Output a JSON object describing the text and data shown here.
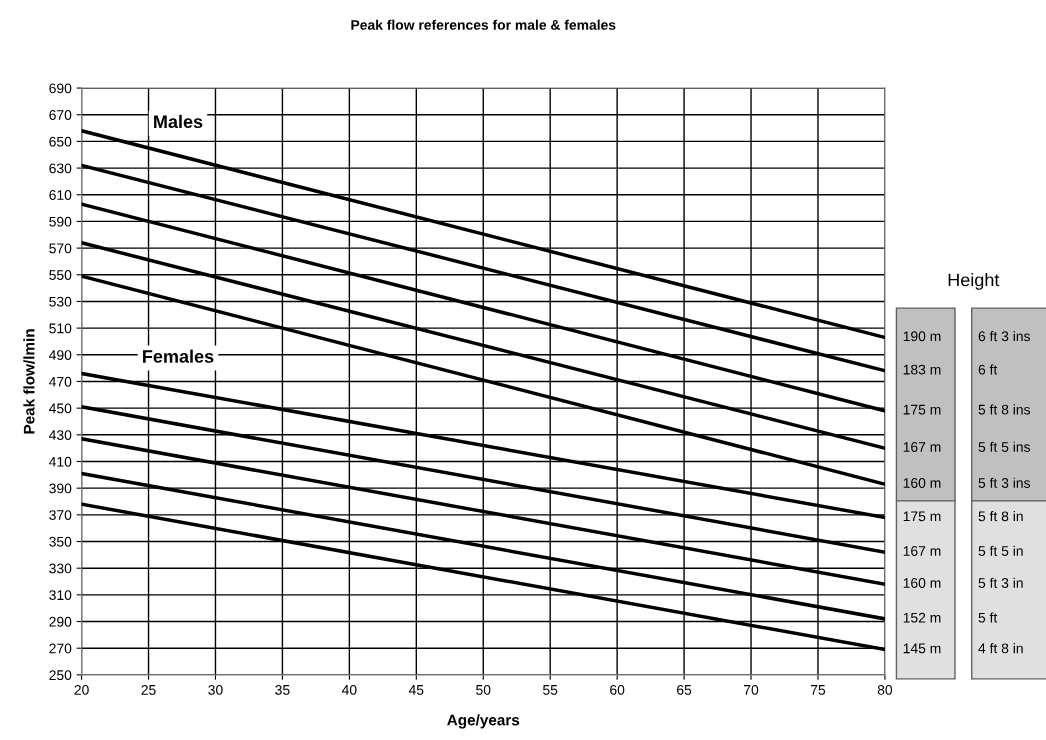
{
  "chart_data": {
    "type": "line",
    "title": "Peak flow references for male & females",
    "xlabel": "Age/years",
    "ylabel": "Peak flow/lmin",
    "x": [
      20,
      80
    ],
    "series": [
      {
        "name": "190 m",
        "color": "#000000",
        "values": [
          658,
          503
        ]
      },
      {
        "name": "183 m",
        "color": "#000000",
        "values": [
          632,
          478
        ]
      },
      {
        "name": "175 m",
        "color": "#000000",
        "values": [
          603,
          448
        ]
      },
      {
        "name": "167 m",
        "color": "#000000",
        "values": [
          574,
          420
        ]
      },
      {
        "name": "160 m",
        "color": "#000000",
        "values": [
          549,
          393
        ]
      },
      {
        "name": "175 m",
        "color": "#000000",
        "values": [
          476,
          368
        ]
      },
      {
        "name": "167 m",
        "color": "#000000",
        "values": [
          451,
          342
        ]
      },
      {
        "name": "160 m",
        "color": "#000000",
        "values": [
          427,
          318
        ]
      },
      {
        "name": "152 m",
        "color": "#000000",
        "values": [
          401,
          292
        ]
      },
      {
        "name": "145 m",
        "color": "#000000",
        "values": [
          378,
          269
        ]
      }
    ],
    "annotations": [
      "Males",
      "Females",
      "Height",
      "6 ft 3 ins",
      "6 ft",
      "5 ft 8 ins",
      "5 ft 5 ins",
      "5 ft 3 ins",
      "5 ft 8 in",
      "5 ft 5 in",
      "5 ft 3 in",
      "5 ft",
      "4 ft 8 in"
    ],
    "xlim": [
      20,
      80
    ],
    "ylim": [
      250,
      690
    ],
    "xticks": [
      20,
      25,
      30,
      35,
      40,
      45,
      50,
      55,
      60,
      65,
      70,
      75,
      80
    ],
    "yticks": [
      250,
      270,
      290,
      310,
      330,
      350,
      370,
      390,
      410,
      430,
      450,
      470,
      490,
      510,
      530,
      550,
      570,
      590,
      610,
      630,
      650,
      670,
      690
    ],
    "grid": true,
    "marker": "none",
    "line_style": "solid",
    "legend": false
  }
}
